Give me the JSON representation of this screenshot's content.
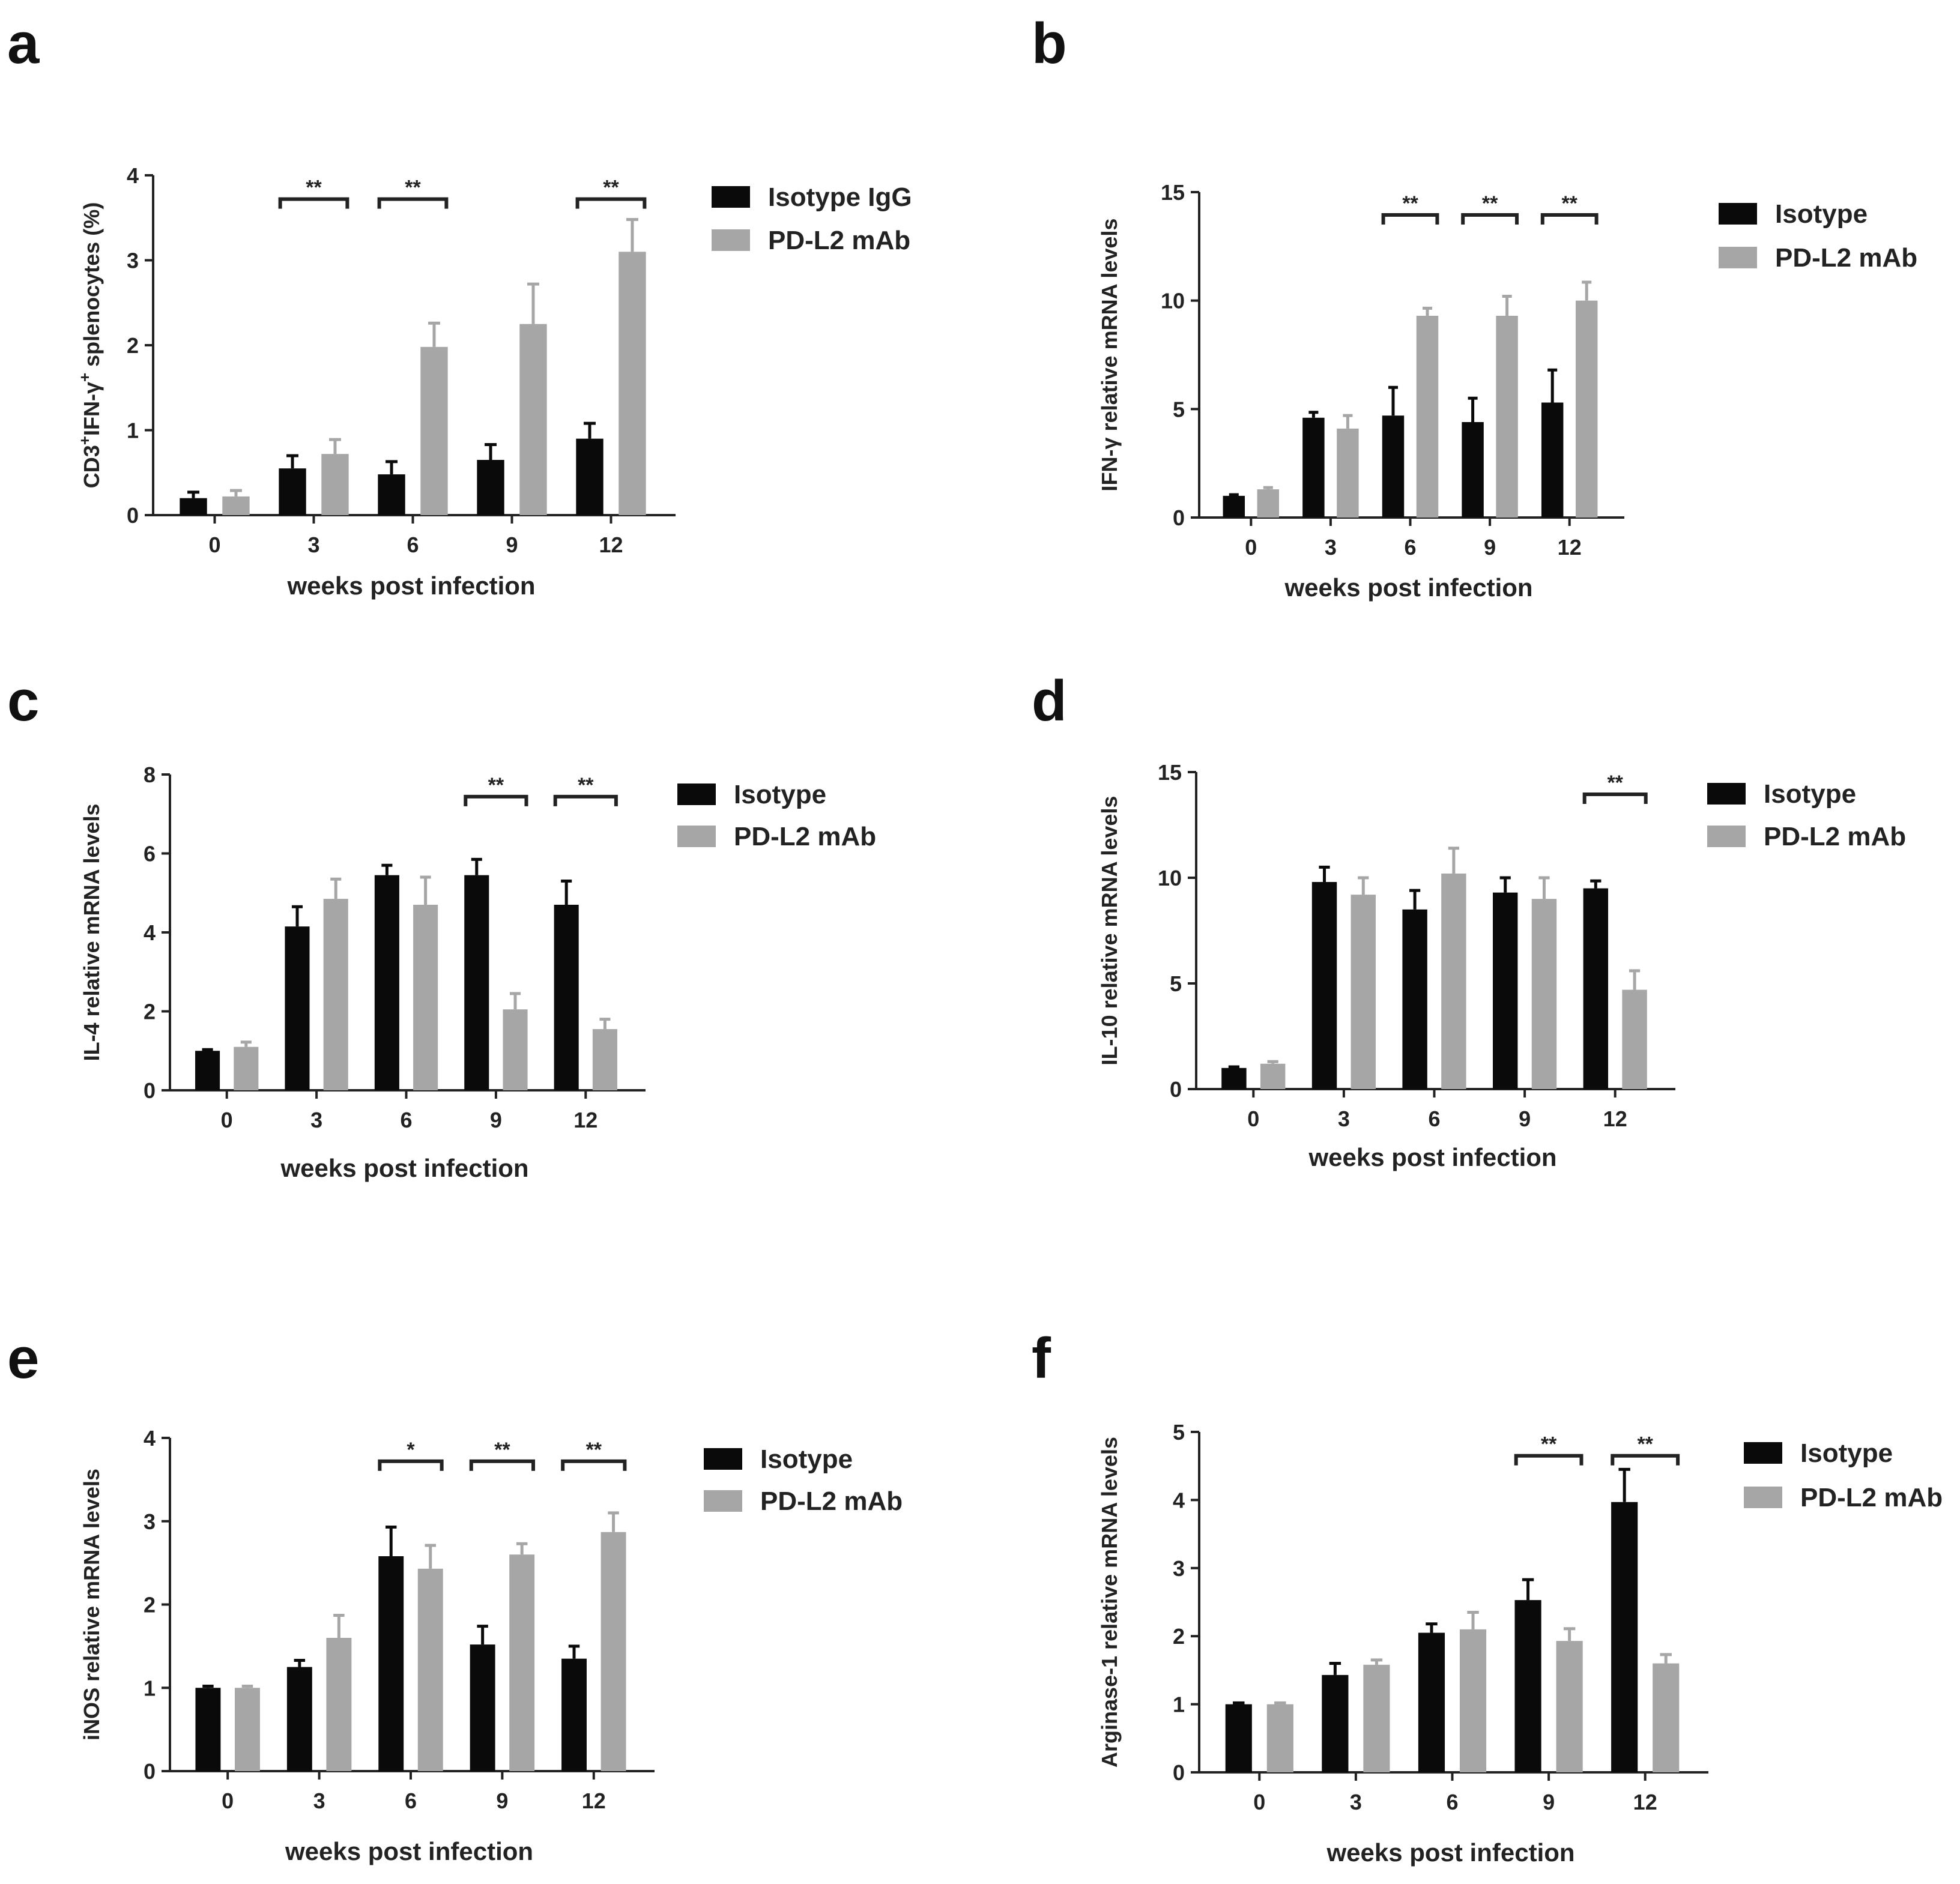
{
  "colors": {
    "isotype": "#0a0a0a",
    "pdl2": "#a6a6a6",
    "axis": "#222222"
  },
  "chart_data": [
    {
      "panel": "a",
      "type": "bar",
      "ylabel": "CD3+IFN-γ+ splenocytes (%)",
      "ylabel_parts": {
        "a": "CD3",
        "sup1": "+",
        "b": "IFN-γ",
        "sup2": "+",
        "c": " splenocytes (%)"
      },
      "xlabel": "weeks post infection",
      "categories": [
        "0",
        "3",
        "6",
        "9",
        "12"
      ],
      "ylim": [
        0,
        4
      ],
      "yticks": [
        "0",
        "1",
        "2",
        "3",
        "4"
      ],
      "legend": [
        "Isotype IgG",
        "PD-L2 mAb"
      ],
      "series": [
        {
          "name": "Isotype IgG",
          "values": [
            0.2,
            0.55,
            0.48,
            0.65,
            0.9
          ],
          "errors": [
            0.07,
            0.15,
            0.15,
            0.18,
            0.18
          ]
        },
        {
          "name": "PD-L2 mAb",
          "values": [
            0.22,
            0.72,
            1.98,
            2.25,
            3.1
          ],
          "errors": [
            0.07,
            0.17,
            0.28,
            0.47,
            0.38
          ]
        }
      ],
      "significance": [
        {
          "category": "3",
          "label": "**"
        },
        {
          "category": "6",
          "label": "**"
        },
        {
          "category": "12",
          "label": "**"
        }
      ]
    },
    {
      "panel": "b",
      "type": "bar",
      "ylabel": "IFN-γ relative mRNA levels",
      "xlabel": "weeks post infection",
      "categories": [
        "0",
        "3",
        "6",
        "9",
        "12"
      ],
      "ylim": [
        0,
        15
      ],
      "yticks": [
        "0",
        "5",
        "10",
        "15"
      ],
      "legend": [
        "Isotype",
        "PD-L2 mAb"
      ],
      "series": [
        {
          "name": "Isotype",
          "values": [
            1.0,
            4.6,
            4.7,
            4.4,
            5.3
          ],
          "errors": [
            0.05,
            0.25,
            1.3,
            1.1,
            1.5
          ]
        },
        {
          "name": "PD-L2 mAb",
          "values": [
            1.3,
            4.1,
            9.3,
            9.3,
            10.0
          ],
          "errors": [
            0.08,
            0.6,
            0.35,
            0.9,
            0.85
          ]
        }
      ],
      "significance": [
        {
          "category": "6",
          "label": "**"
        },
        {
          "category": "9",
          "label": "**"
        },
        {
          "category": "12",
          "label": "**"
        }
      ]
    },
    {
      "panel": "c",
      "type": "bar",
      "ylabel": "IL-4 relative mRNA levels",
      "xlabel": "weeks post infection",
      "categories": [
        "0",
        "3",
        "6",
        "9",
        "12"
      ],
      "ylim": [
        0,
        8
      ],
      "yticks": [
        "0",
        "2",
        "4",
        "6",
        "8"
      ],
      "legend": [
        "Isotype",
        "PD-L2 mAb"
      ],
      "series": [
        {
          "name": "Isotype",
          "values": [
            1.0,
            4.15,
            5.45,
            5.45,
            4.7
          ],
          "errors": [
            0.03,
            0.5,
            0.25,
            0.4,
            0.6
          ]
        },
        {
          "name": "PD-L2 mAb",
          "values": [
            1.1,
            4.85,
            4.7,
            2.05,
            1.55
          ],
          "errors": [
            0.12,
            0.5,
            0.7,
            0.4,
            0.25
          ]
        }
      ],
      "significance": [
        {
          "category": "9",
          "label": "**"
        },
        {
          "category": "12",
          "label": "**"
        }
      ]
    },
    {
      "panel": "d",
      "type": "bar",
      "ylabel": "IL-10 relative mRNA levels",
      "xlabel": "weeks post infection",
      "categories": [
        "0",
        "3",
        "6",
        "9",
        "12"
      ],
      "ylim": [
        0,
        15
      ],
      "yticks": [
        "0",
        "5",
        "10",
        "15"
      ],
      "legend": [
        "Isotype",
        "PD-L2 mAb"
      ],
      "series": [
        {
          "name": "Isotype",
          "values": [
            1.0,
            9.8,
            8.5,
            9.3,
            9.5
          ],
          "errors": [
            0.05,
            0.7,
            0.9,
            0.7,
            0.35
          ]
        },
        {
          "name": "PD-L2 mAb",
          "values": [
            1.2,
            9.2,
            10.2,
            9.0,
            4.7
          ],
          "errors": [
            0.1,
            0.8,
            1.2,
            1.0,
            0.9
          ]
        }
      ],
      "significance": [
        {
          "category": "12",
          "label": "**"
        }
      ]
    },
    {
      "panel": "e",
      "type": "bar",
      "ylabel": "iNOS relative mRNA levels",
      "xlabel": "weeks post infection",
      "categories": [
        "0",
        "3",
        "6",
        "9",
        "12"
      ],
      "ylim": [
        0,
        4
      ],
      "yticks": [
        "0",
        "1",
        "2",
        "3",
        "4"
      ],
      "legend": [
        "Isotype",
        "PD-L2 mAb"
      ],
      "series": [
        {
          "name": "Isotype",
          "values": [
            1.0,
            1.25,
            2.58,
            1.52,
            1.35
          ],
          "errors": [
            0.02,
            0.08,
            0.35,
            0.22,
            0.15
          ]
        },
        {
          "name": "PD-L2 mAb",
          "values": [
            1.0,
            1.6,
            2.43,
            2.6,
            2.87
          ],
          "errors": [
            0.02,
            0.27,
            0.28,
            0.13,
            0.23
          ]
        }
      ],
      "significance": [
        {
          "category": "6",
          "label": "*"
        },
        {
          "category": "9",
          "label": "**"
        },
        {
          "category": "12",
          "label": "**"
        }
      ]
    },
    {
      "panel": "f",
      "type": "bar",
      "ylabel": "Arginase-1 relative mRNA levels",
      "xlabel": "weeks post infection",
      "categories": [
        "0",
        "3",
        "6",
        "9",
        "12"
      ],
      "ylim": [
        0,
        5
      ],
      "yticks": [
        "0",
        "1",
        "2",
        "3",
        "4",
        "5"
      ],
      "legend": [
        "Isotype",
        "PD-L2 mAb"
      ],
      "series": [
        {
          "name": "Isotype",
          "values": [
            1.0,
            1.43,
            2.05,
            2.53,
            3.97
          ],
          "errors": [
            0.02,
            0.17,
            0.13,
            0.3,
            0.48
          ]
        },
        {
          "name": "PD-L2 mAb",
          "values": [
            1.0,
            1.58,
            2.1,
            1.93,
            1.6
          ],
          "errors": [
            0.02,
            0.07,
            0.25,
            0.18,
            0.13
          ]
        }
      ],
      "significance": [
        {
          "category": "9",
          "label": "**"
        },
        {
          "category": "12",
          "label": "**"
        }
      ]
    }
  ]
}
